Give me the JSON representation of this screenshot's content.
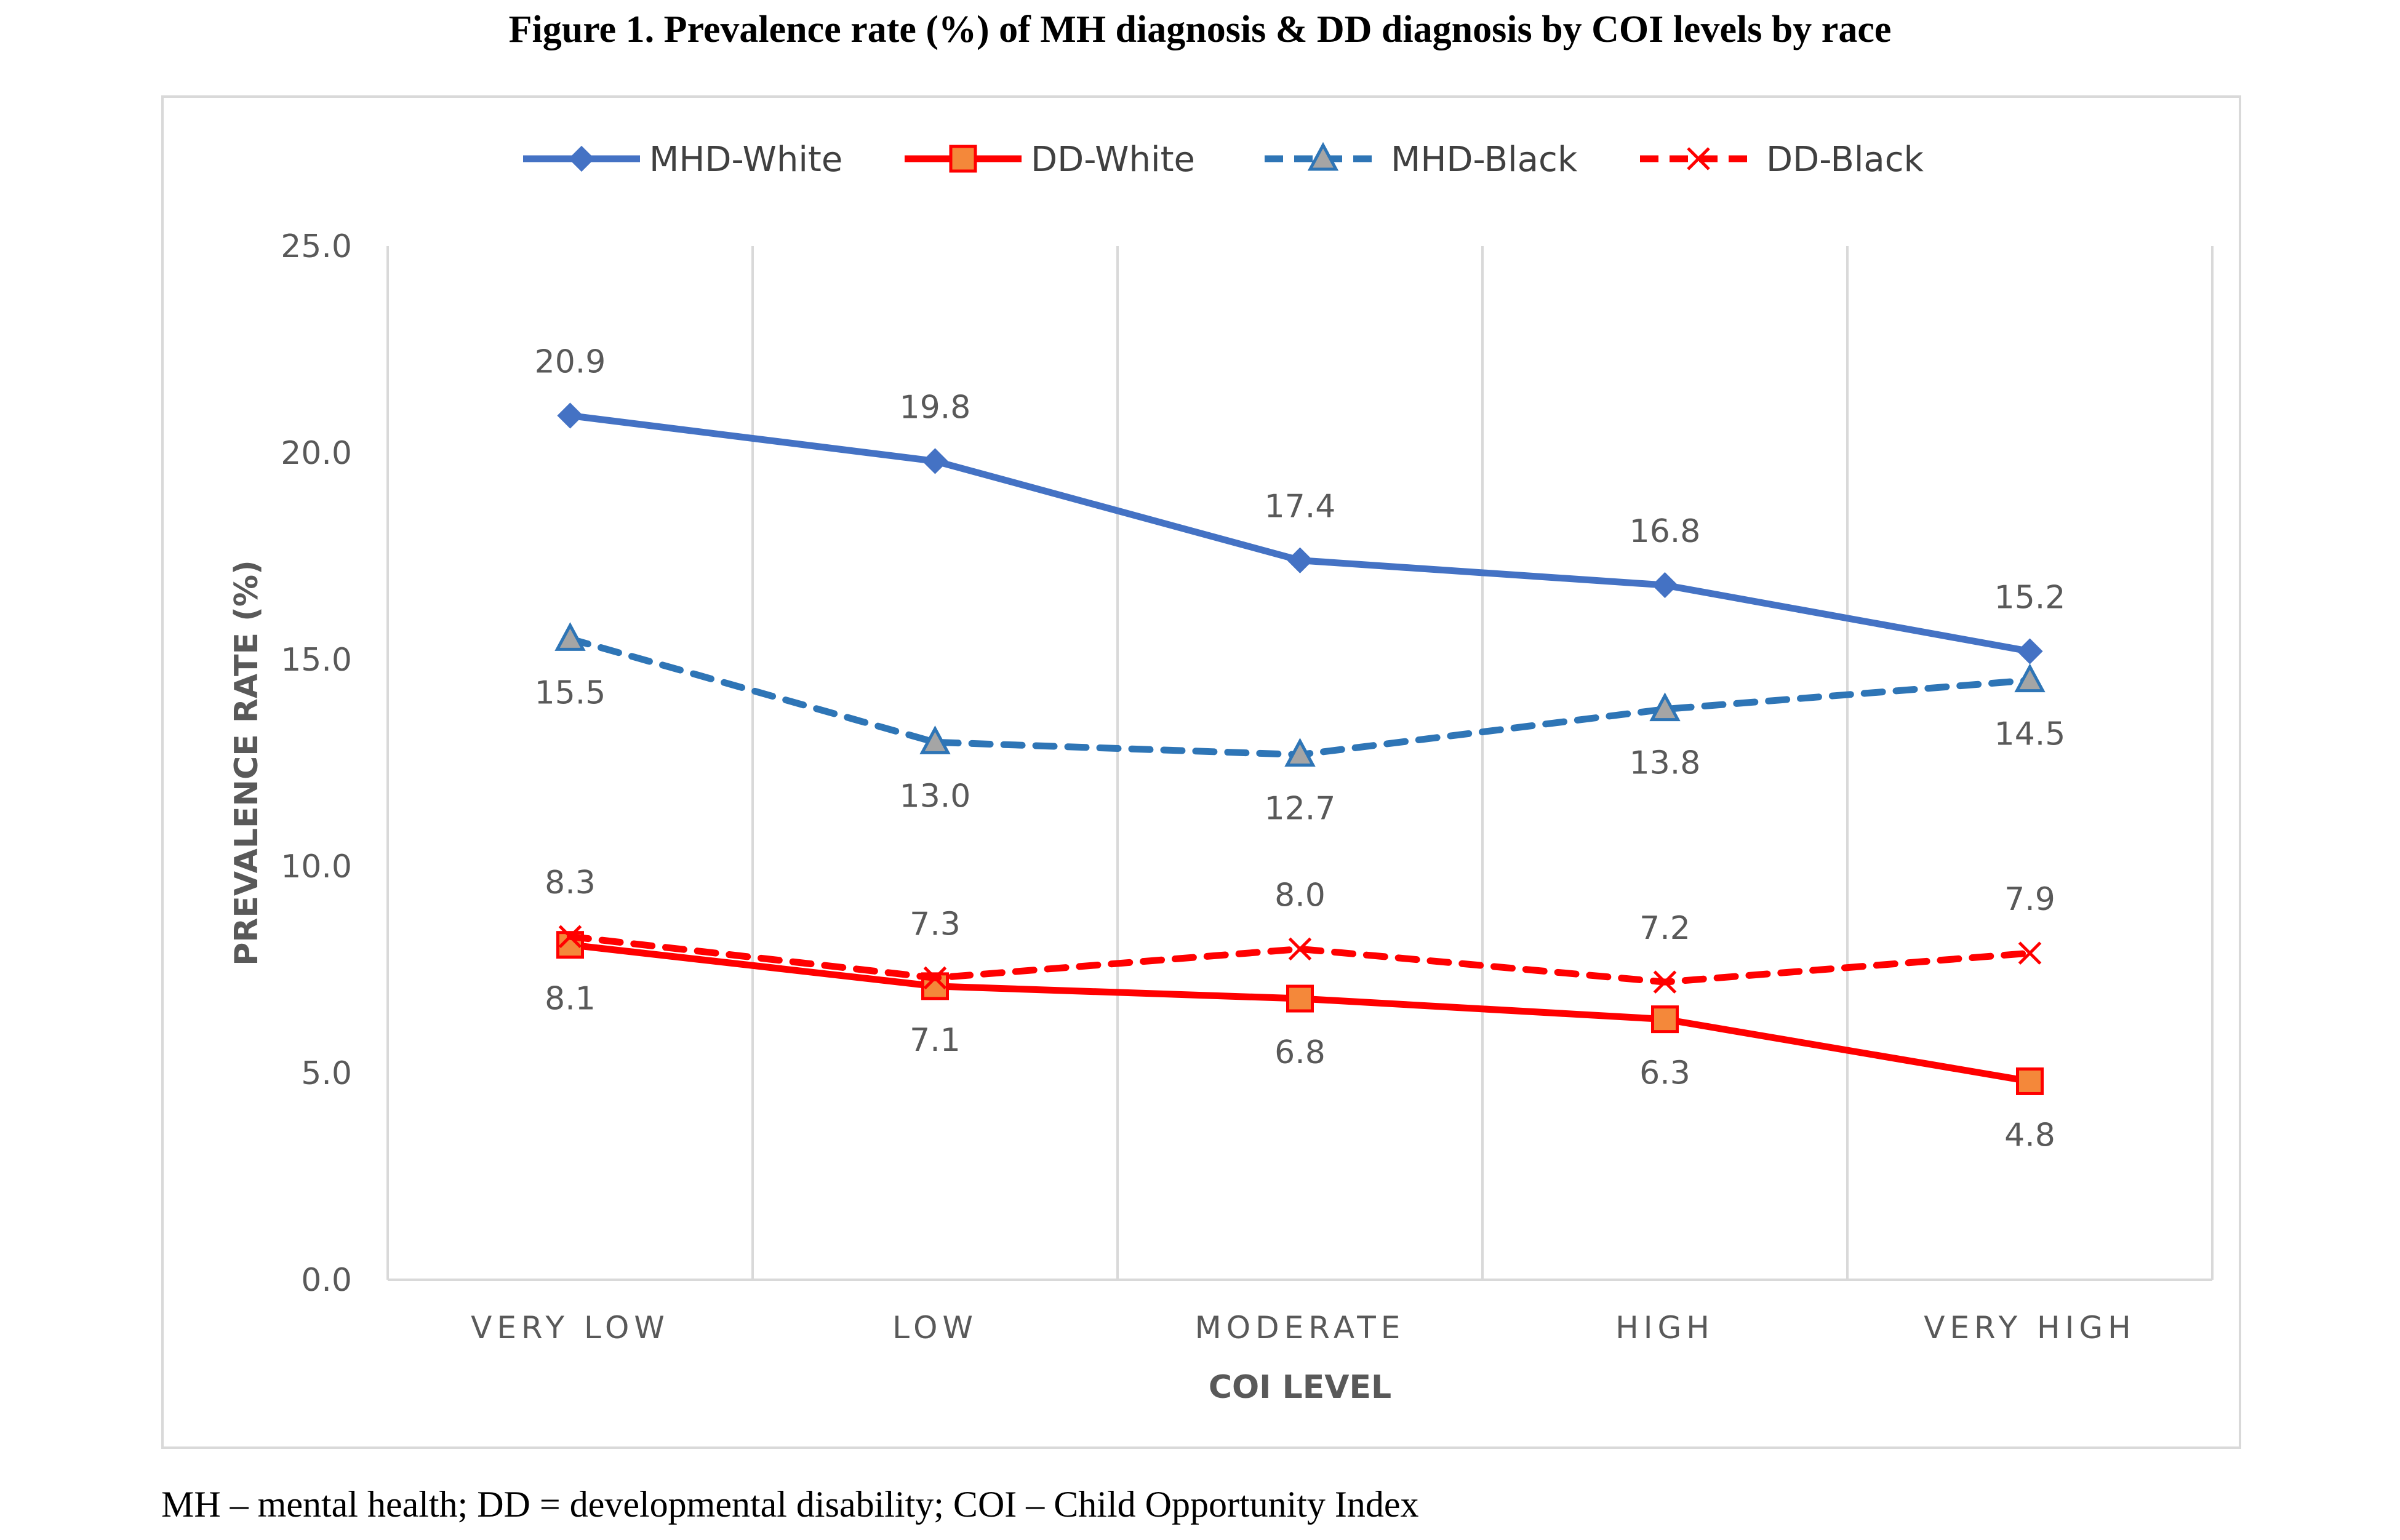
{
  "figure_title": "Figure 1. Prevalence rate (%) of MH diagnosis & DD diagnosis by COI levels by race",
  "footnote": "MH – mental health; DD = developmental disability; COI – Child Opportunity Index",
  "chart_data": {
    "type": "line",
    "title": "",
    "xlabel": "COI LEVEL",
    "ylabel": "PREVALENCE RATE (%)",
    "categories": [
      "VERY LOW",
      "LOW",
      "MODERATE",
      "HIGH",
      "VERY HIGH"
    ],
    "ylim": [
      0,
      25
    ],
    "yticks": [
      "0.0",
      "5.0",
      "10.0",
      "15.0",
      "20.0",
      "25.0"
    ],
    "grid": "vertical",
    "legend_position": "top",
    "series": [
      {
        "name": "MHD-White",
        "values": [
          20.9,
          19.8,
          17.4,
          16.8,
          15.2
        ],
        "labels": [
          "20.9",
          "19.8",
          "17.4",
          "16.8",
          "15.2"
        ],
        "color": "#4472C4",
        "dash": "solid",
        "marker": "diamond",
        "label_pos": "above"
      },
      {
        "name": "DD-White",
        "values": [
          8.1,
          7.1,
          6.8,
          6.3,
          4.8
        ],
        "labels": [
          "8.1",
          "7.1",
          "6.8",
          "6.3",
          "4.8"
        ],
        "color": "#FF0000",
        "dash": "solid",
        "marker": "square",
        "label_pos": "below"
      },
      {
        "name": "MHD-Black",
        "values": [
          15.5,
          13.0,
          12.7,
          13.8,
          14.5
        ],
        "labels": [
          "15.5",
          "13.0",
          "12.7",
          "13.8",
          "14.5"
        ],
        "color": "#2E75B6",
        "dash": "dashed",
        "marker": "triangle",
        "label_pos": "below"
      },
      {
        "name": "DD-Black",
        "values": [
          8.3,
          7.3,
          8.0,
          7.2,
          7.9
        ],
        "labels": [
          "8.3",
          "7.3",
          "8.0",
          "7.2",
          "7.9"
        ],
        "color": "#FF0000",
        "dash": "dashed",
        "marker": "x",
        "label_pos": "above"
      }
    ]
  }
}
